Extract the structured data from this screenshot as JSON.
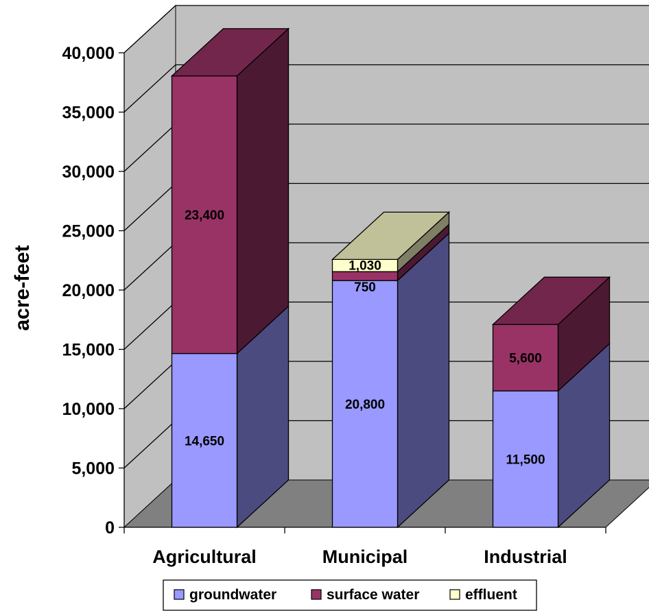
{
  "chart_data": {
    "type": "bar",
    "stacked": true,
    "three_d": true,
    "ylabel": "acre-feet",
    "xlabel": "",
    "title": "",
    "ylim": [
      0,
      40000
    ],
    "ytick_step": 5000,
    "ytick_labels": [
      "0",
      "5,000",
      "10,000",
      "15,000",
      "20,000",
      "25,000",
      "30,000",
      "35,000",
      "40,000"
    ],
    "categories": [
      "Agricultural",
      "Municipal",
      "Industrial"
    ],
    "series": [
      {
        "name": "groundwater",
        "values": [
          14650,
          20800,
          11500
        ],
        "labels": [
          "14,650",
          "20,800",
          "11,500"
        ],
        "color": "#9999ff"
      },
      {
        "name": "surface water",
        "values": [
          23400,
          750,
          5600
        ],
        "labels": [
          "23,400",
          "750",
          "5,600"
        ],
        "color": "#993366"
      },
      {
        "name": "effluent",
        "values": [
          0,
          1030,
          0
        ],
        "labels": [
          "",
          "1,030",
          ""
        ],
        "color": "#ffffcc"
      }
    ],
    "grid": true,
    "legend": "bottom",
    "colors": {
      "wall": "#c0c0c0",
      "floor": "#808080",
      "groundwater_side": "#4b4b7f",
      "surface_water_top": "#73264c",
      "surface_water_side": "#4c1933",
      "effluent_top": "#c0c099",
      "effluent_side": "#7f7f66"
    }
  }
}
